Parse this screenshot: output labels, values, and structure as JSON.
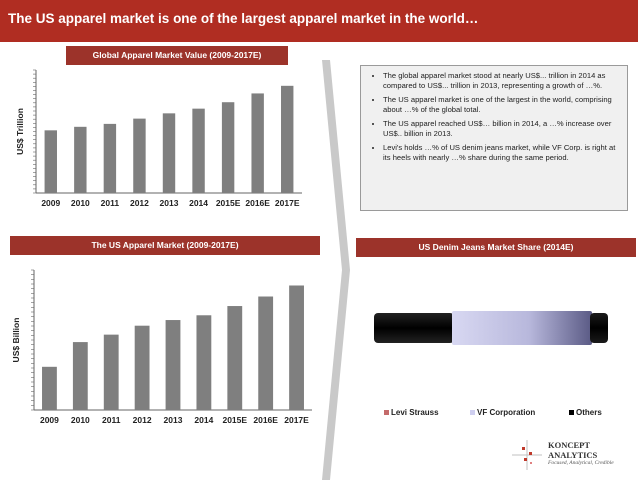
{
  "slide": {
    "title": "The US apparel market is one of the largest apparel market in the world…"
  },
  "colors": {
    "accent": "#b02d22",
    "header": "#9c332a",
    "bar": "#7f7f7f"
  },
  "panels": {
    "global_title": "Global Apparel Market Value (2009-2017E)",
    "us_title": "The US Apparel Market (2009-2017E)",
    "denim_title": "US Denim Jeans Market Share (2014E)"
  },
  "bullets": [
    "The global apparel market stood at nearly US$... trillion in 2014 as compared to US$... trillion in 2013, representing a growth of …%.",
    "The US apparel market is one of the largest in the world, comprising about …% of the global total.",
    "The US apparel reached US$… billion in 2014, a …% increase over US$.. billion in 2013.",
    "Levi's holds …% of US denim jeans market, while VF Corp. is right at its heels with nearly …% share during the same period."
  ],
  "logo": {
    "name_line1": "KONCEPT",
    "name_line2": "ANALYTICS",
    "tagline": "Focused, Analytical, Credible"
  },
  "chart_data": [
    {
      "type": "bar",
      "ylabel": "US$ Trillion",
      "categories": [
        "2009",
        "2010",
        "2011",
        "2012",
        "2013",
        "2014",
        "2015E",
        "2016E",
        "2017E"
      ],
      "values": [
        1.07,
        1.13,
        1.18,
        1.27,
        1.36,
        1.44,
        1.55,
        1.7,
        1.83
      ],
      "ylim": [
        0,
        2.1
      ]
    },
    {
      "type": "bar",
      "ylabel": "US$ Billion",
      "categories": [
        "2009",
        "2010",
        "2011",
        "2012",
        "2013",
        "2014",
        "2015E",
        "2016E",
        "2017E"
      ],
      "values": [
        145,
        228,
        253,
        283,
        302,
        318,
        349,
        381,
        418
      ],
      "ylim": [
        0,
        470
      ]
    },
    {
      "type": "bar",
      "categories": [
        "Levi Strauss",
        "VF Corporation",
        "Others"
      ],
      "colors": [
        "#c46a6a",
        "#cfcff0",
        "#000000"
      ]
    }
  ]
}
